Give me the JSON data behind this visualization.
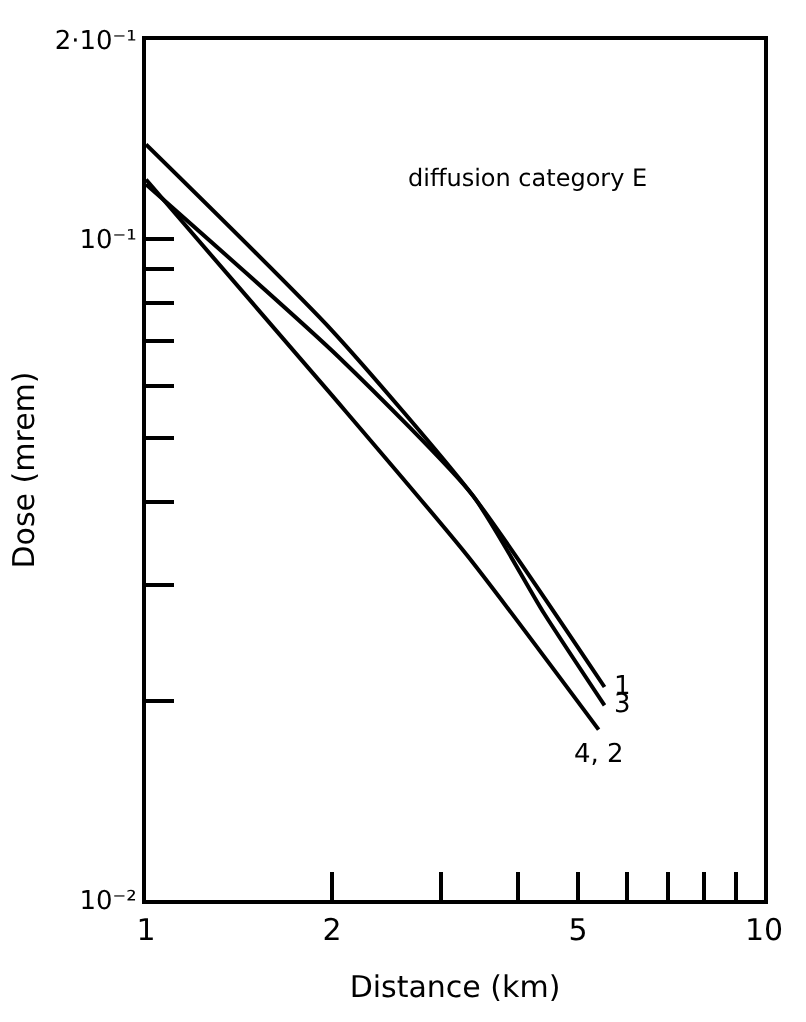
{
  "chart_data": {
    "type": "line",
    "xlabel": "Distance (km)",
    "ylabel": "Dose (mrem)",
    "log": "xy",
    "marker": "none",
    "line_style": "solid",
    "annotations": [
      "diffusion category E"
    ],
    "xlim": [
      1,
      10
    ],
    "ylim": [
      0.01,
      0.2
    ],
    "xticks": [
      1,
      2,
      {
        "value": 3,
        "label": null
      },
      {
        "value": 4,
        "label": null
      },
      5,
      {
        "value": 6,
        "label": null
      },
      {
        "value": 7,
        "label": null
      },
      {
        "value": 8,
        "label": null
      },
      {
        "value": 9,
        "label": null
      },
      10
    ],
    "yticks": [
      {
        "value": 0.01,
        "label": "10⁻²"
      },
      {
        "value": 0.02,
        "label": null
      },
      {
        "value": 0.03,
        "label": null
      },
      {
        "value": 0.04,
        "label": null
      },
      {
        "value": 0.05,
        "label": null
      },
      {
        "value": 0.06,
        "label": null
      },
      {
        "value": 0.07,
        "label": null
      },
      {
        "value": 0.08,
        "label": null
      },
      {
        "value": 0.09,
        "label": null
      },
      {
        "value": 0.1,
        "label": "10⁻¹"
      },
      {
        "value": 0.2,
        "label": "2·10⁻¹"
      }
    ],
    "series": [
      {
        "name": "1",
        "color": "#000000",
        "x": [
          1,
          2,
          3.38,
          5.52
        ],
        "values": [
          0.139,
          0.0727,
          0.0409,
          0.021
        ]
      },
      {
        "name": "3",
        "color": "#000000",
        "x": [
          1,
          2.05,
          3.38,
          4.4,
          5.52
        ],
        "values": [
          0.121,
          0.0663,
          0.0409,
          0.0272,
          0.0197
        ]
      },
      {
        "name": "4, 2",
        "color": "#000000",
        "x": [
          1,
          2,
          3.31,
          5.4
        ],
        "values": [
          0.123,
          0.058,
          0.0332,
          0.0181
        ]
      }
    ]
  }
}
